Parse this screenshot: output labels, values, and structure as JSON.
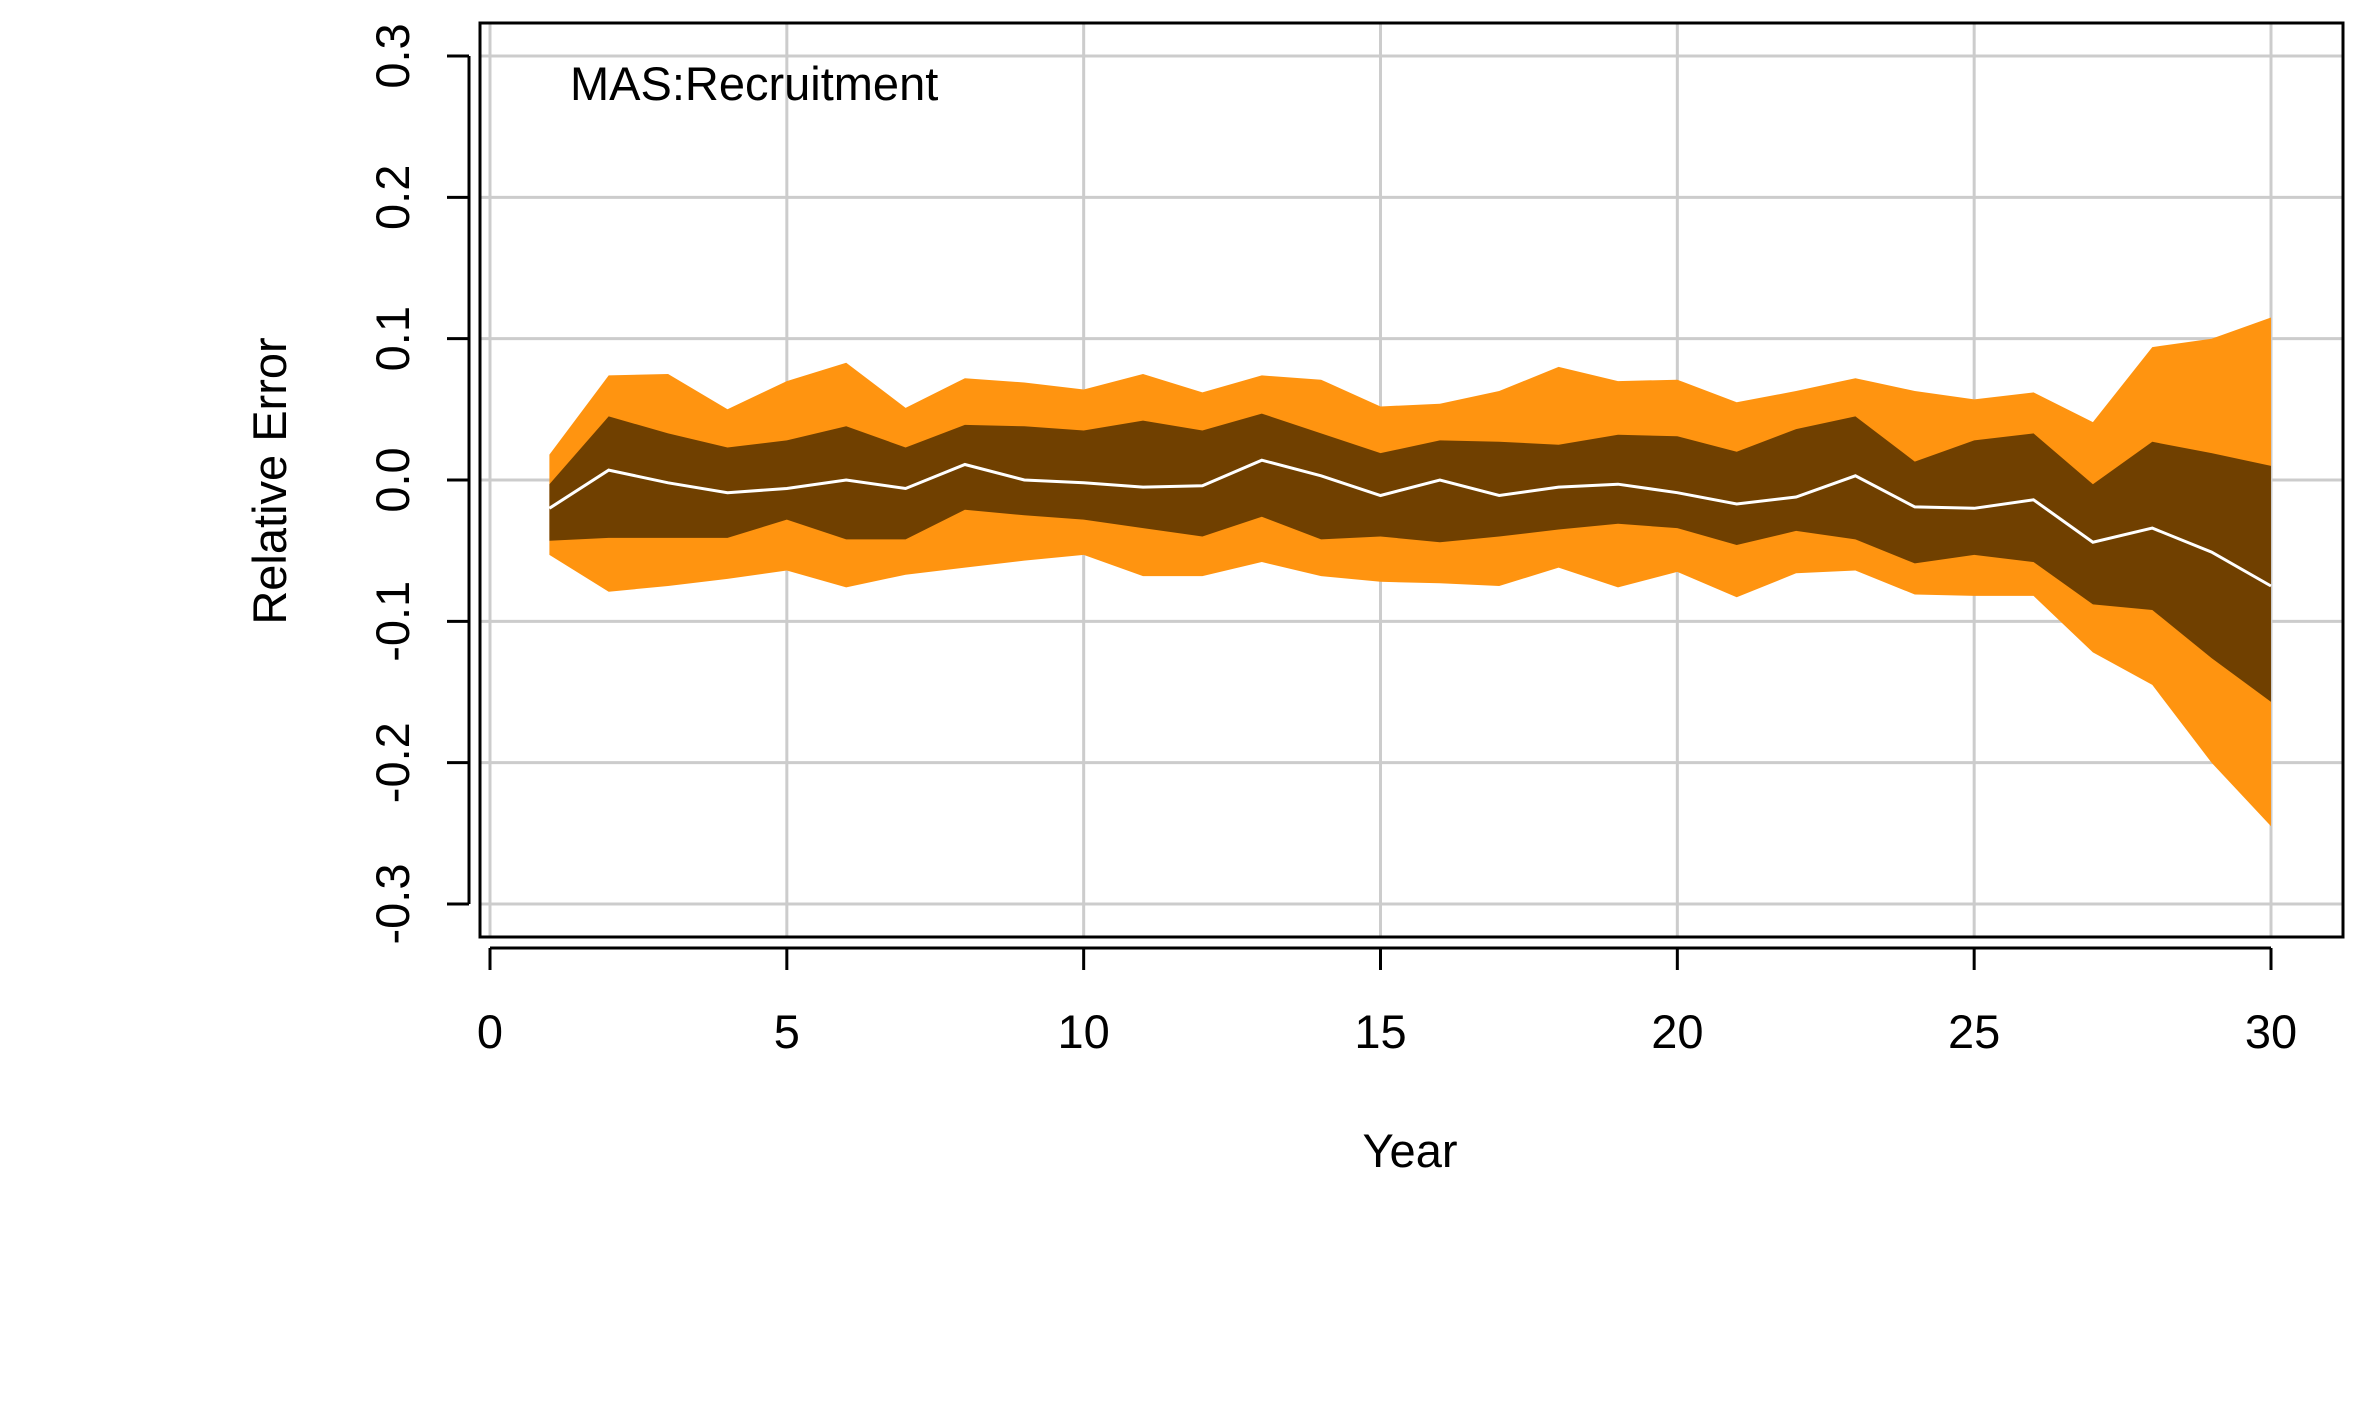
{
  "chart_data": {
    "type": "area",
    "title": "",
    "panel_label": "MAS:Recruitment",
    "xlabel": "Year",
    "ylabel": "Relative Error",
    "xlim": [
      0,
      30
    ],
    "ylim": [
      -0.3,
      0.3
    ],
    "x_ticks": [
      0,
      5,
      10,
      15,
      20,
      25,
      30
    ],
    "x_tick_labels": [
      "0",
      "5",
      "10",
      "15",
      "20",
      "25",
      "30"
    ],
    "y_ticks": [
      -0.3,
      -0.2,
      -0.1,
      0.0,
      0.1,
      0.2,
      0.3
    ],
    "y_tick_labels": [
      "-0.3",
      "-0.2",
      "-0.1",
      "0.0",
      "0.1",
      "0.2",
      "0.3"
    ],
    "grid": true,
    "x": [
      1,
      2,
      3,
      4,
      5,
      6,
      7,
      8,
      9,
      10,
      11,
      12,
      13,
      14,
      15,
      16,
      17,
      18,
      19,
      20,
      21,
      22,
      23,
      24,
      25,
      26,
      27,
      28,
      29,
      30
    ],
    "series": [
      {
        "role": "outer_band",
        "color": "#FF9410",
        "lower": [
          -0.053,
          -0.079,
          -0.075,
          -0.07,
          -0.064,
          -0.076,
          -0.067,
          -0.062,
          -0.057,
          -0.053,
          -0.068,
          -0.068,
          -0.058,
          -0.068,
          -0.072,
          -0.073,
          -0.075,
          -0.062,
          -0.076,
          -0.065,
          -0.083,
          -0.066,
          -0.064,
          -0.081,
          -0.082,
          -0.082,
          -0.122,
          -0.145,
          -0.2,
          -0.245
        ],
        "upper": [
          0.018,
          0.074,
          0.075,
          0.05,
          0.07,
          0.083,
          0.051,
          0.072,
          0.069,
          0.064,
          0.075,
          0.062,
          0.074,
          0.071,
          0.052,
          0.054,
          0.063,
          0.08,
          0.07,
          0.071,
          0.055,
          0.063,
          0.072,
          0.063,
          0.057,
          0.062,
          0.041,
          0.094,
          0.1,
          0.115
        ]
      },
      {
        "role": "inner_band",
        "color": "#704000",
        "lower": [
          -0.043,
          -0.041,
          -0.041,
          -0.041,
          -0.028,
          -0.042,
          -0.042,
          -0.021,
          -0.025,
          -0.028,
          -0.034,
          -0.04,
          -0.026,
          -0.042,
          -0.04,
          -0.044,
          -0.04,
          -0.035,
          -0.031,
          -0.034,
          -0.046,
          -0.036,
          -0.042,
          -0.059,
          -0.053,
          -0.058,
          -0.088,
          -0.092,
          -0.126,
          -0.157
        ],
        "upper": [
          -0.003,
          0.045,
          0.033,
          0.023,
          0.028,
          0.038,
          0.023,
          0.039,
          0.038,
          0.035,
          0.042,
          0.035,
          0.047,
          0.033,
          0.019,
          0.028,
          0.027,
          0.025,
          0.032,
          0.031,
          0.02,
          0.036,
          0.045,
          0.013,
          0.028,
          0.033,
          -0.003,
          0.027,
          0.019,
          0.01
        ]
      },
      {
        "role": "median",
        "color": "#ffffff",
        "values": [
          -0.02,
          0.007,
          -0.002,
          -0.009,
          -0.006,
          0.0,
          -0.006,
          0.011,
          0.0,
          -0.002,
          -0.005,
          -0.004,
          0.014,
          0.003,
          -0.011,
          0.0,
          -0.011,
          -0.005,
          -0.003,
          -0.009,
          -0.017,
          -0.012,
          0.003,
          -0.019,
          -0.02,
          -0.014,
          -0.044,
          -0.034,
          -0.051,
          -0.075
        ]
      }
    ]
  }
}
